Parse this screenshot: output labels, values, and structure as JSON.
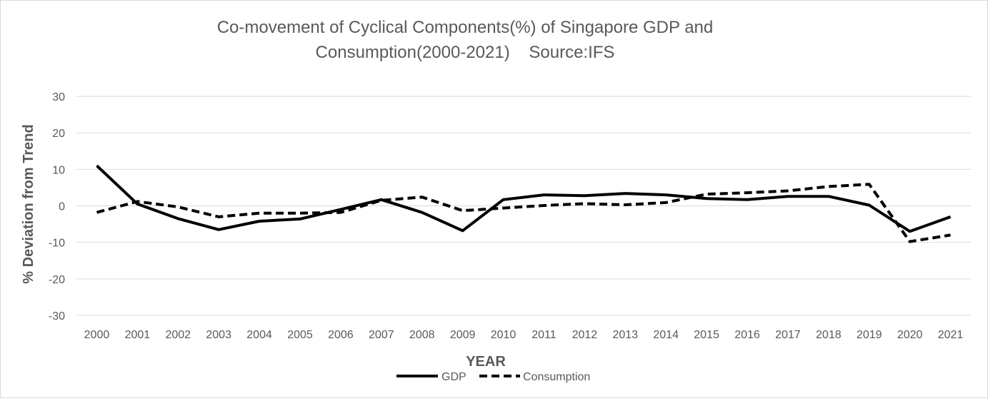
{
  "chart_data": {
    "type": "line",
    "title_line1": "Co-movement of Cyclical Components(%) of Singapore GDP and",
    "title_line2": "Consumption(2000-2021)    Source:IFS",
    "xlabel": "YEAR",
    "ylabel": "% Deviation from Trend",
    "ylim": [
      -30,
      30
    ],
    "yticks": [
      30,
      20,
      10,
      0,
      -10,
      -20,
      -30
    ],
    "yticks_labels": [
      "30",
      "20",
      "10",
      "0",
      "-10",
      "-20",
      "-30"
    ],
    "grid": true,
    "legend_position": "bottom-center",
    "categories": [
      "2000",
      "2001",
      "2002",
      "2003",
      "2004",
      "2005",
      "2006",
      "2007",
      "2008",
      "2009",
      "2010",
      "2011",
      "2012",
      "2013",
      "2014",
      "2015",
      "2016",
      "2017",
      "2018",
      "2019",
      "2020",
      "2021"
    ],
    "series": [
      {
        "name": "GDP",
        "style": "solid",
        "color": "#000000",
        "values": [
          11.0,
          0.5,
          -3.5,
          -6.5,
          -4.2,
          -3.6,
          -1.0,
          1.7,
          -1.8,
          -6.8,
          1.7,
          3.0,
          2.8,
          3.4,
          3.0,
          2.0,
          1.7,
          2.6,
          2.6,
          0.2,
          -7.0,
          -3.0
        ]
      },
      {
        "name": "Consumption",
        "style": "dashed",
        "color": "#000000",
        "values": [
          -1.8,
          1.2,
          -0.3,
          -3.0,
          -2.0,
          -2.0,
          -1.8,
          1.5,
          2.4,
          -1.3,
          -0.6,
          0.1,
          0.6,
          0.3,
          0.9,
          3.2,
          3.6,
          4.1,
          5.3,
          5.9,
          -9.8,
          -8.0
        ]
      }
    ]
  }
}
